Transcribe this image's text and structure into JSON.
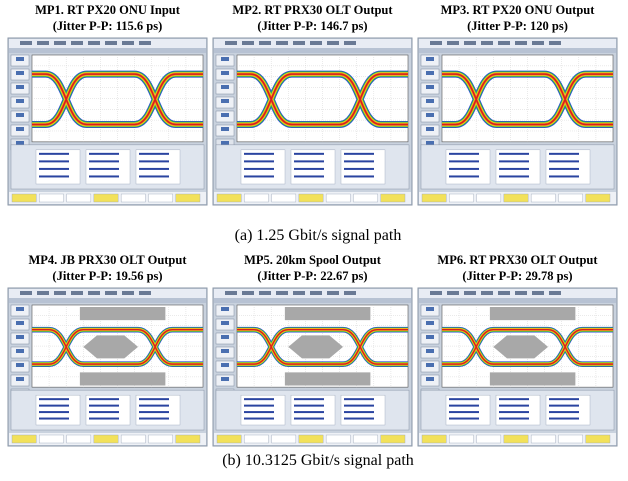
{
  "rows": [
    {
      "caption": "(a)   1.25 Gbit/s signal path",
      "panels": [
        {
          "title": "MP1. RT PX20 ONU Input",
          "subtitle": "(Jitter P-P: 115.6 ps)"
        },
        {
          "title": "MP2. RT PRX30 OLT Output",
          "subtitle": "(Jitter P-P: 146.7 ps)"
        },
        {
          "title": "MP3. RT PX20 ONU Output",
          "subtitle": "(Jitter P-P: 120 ps)"
        }
      ]
    },
    {
      "caption": "(b)   10.3125 Gbit/s signal path",
      "panels": [
        {
          "title": "MP4. JB PRX30 OLT Output",
          "subtitle": "(Jitter P-P: 19.56 ps)"
        },
        {
          "title": "MP5. 20km Spool Output",
          "subtitle": "(Jitter P-P: 22.67 ps)"
        },
        {
          "title": "MP6. RT PRX30 OLT Output",
          "subtitle": "(Jitter P-P: 29.78 ps)"
        }
      ]
    }
  ]
}
